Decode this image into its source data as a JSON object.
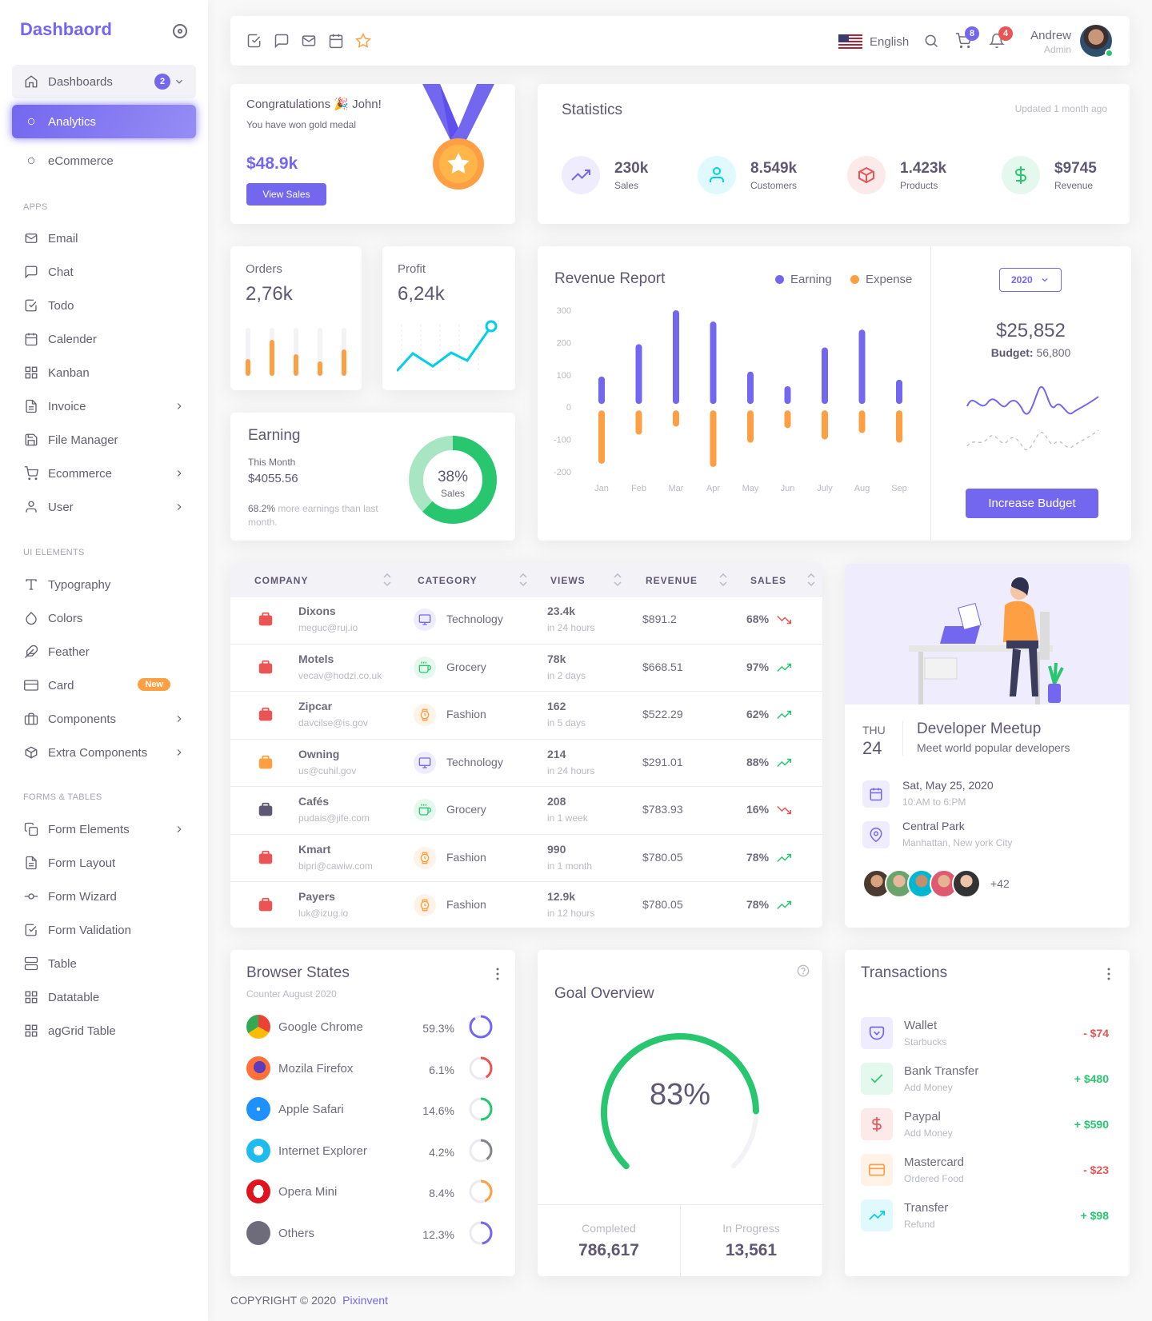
{
  "brand": "Dashbaord",
  "sidebar": {
    "dashboards": {
      "label": "Dashboards",
      "badge": "2"
    },
    "analytics": "Analytics",
    "ecommerce": "eCommerce",
    "heads": {
      "apps": "APPS",
      "ui": "UI ELEMENTS",
      "forms": "FORMS & TABLES"
    },
    "apps": [
      "Email",
      "Chat",
      "Todo",
      "Calender",
      "Kanban",
      "Invoice",
      "File Manager",
      "Ecommerce",
      "User"
    ],
    "ui": [
      "Typography",
      "Colors",
      "Feather",
      "Card",
      "Components",
      "Extra Components"
    ],
    "card_badge": "New",
    "forms": [
      "Form Elements",
      "Form Layout",
      "Form Wizard",
      "Form Validation",
      "Table",
      "Datatable",
      "agGrid Table"
    ]
  },
  "navbar": {
    "language": "English",
    "cart_count": "8",
    "notif_count": "4",
    "user_name": "Andrew",
    "user_role": "Admin"
  },
  "congrats": {
    "title": "Congratulations 🎉 John!",
    "subtitle": "You have won gold medal",
    "amount": "$48.9k",
    "button": "View Sales"
  },
  "statistics": {
    "title": "Statistics",
    "updated": "Updated 1 month ago",
    "items": [
      {
        "value": "230k",
        "label": "Sales",
        "color": "#7367f0"
      },
      {
        "value": "8.549k",
        "label": "Customers",
        "color": "#00cfe8"
      },
      {
        "value": "1.423k",
        "label": "Products",
        "color": "#ea5455"
      },
      {
        "value": "$9745",
        "label": "Revenue",
        "color": "#28c76f"
      }
    ]
  },
  "orders": {
    "title": "Orders",
    "value": "2,76k",
    "bars": [
      0.35,
      0.75,
      0.45,
      0.3,
      0.55
    ]
  },
  "profit": {
    "title": "Profit",
    "value": "6,24k"
  },
  "earning": {
    "title": "Earning",
    "period": "This Month",
    "amount": "$4055.56",
    "pct_text": "68.2%",
    "note_rest": " more earnings than last month.",
    "donut_pct": "38%",
    "donut_label": "Sales",
    "donut_value": 38
  },
  "revenue": {
    "title": "Revenue Report",
    "legend": [
      "Earning",
      "Expense"
    ],
    "year": "2020",
    "total": "$25,852",
    "budget_label": "Budget:",
    "budget_value": "56,800",
    "button": "Increase Budget"
  },
  "chart_data": {
    "type": "bar",
    "title": "Revenue Report",
    "categories": [
      "Jan",
      "Feb",
      "Mar",
      "Apr",
      "May",
      "Jun",
      "July",
      "Aug",
      "Sep"
    ],
    "series": [
      {
        "name": "Earning",
        "values": [
          95,
          195,
          300,
          265,
          110,
          65,
          185,
          240,
          85
        ]
      },
      {
        "name": "Expense",
        "values": [
          -175,
          -85,
          -60,
          -185,
          -110,
          -65,
          -100,
          -80,
          -110
        ]
      }
    ],
    "yticks": [
      "300",
      "200",
      "100",
      "0",
      "-100",
      "-200"
    ],
    "ylim": [
      -200,
      300
    ],
    "colors": {
      "Earning": "#7367f0",
      "Expense": "#ff9f43"
    }
  },
  "table": {
    "headers": [
      "COMPANY",
      "CATEGORY",
      "VIEWS",
      "REVENUE",
      "SALES"
    ],
    "rows": [
      {
        "company": "Dixons",
        "email": "meguc@ruj.io",
        "category": "Technology",
        "views": "23.4k",
        "time": "in 24 hours",
        "revenue": "$891.2",
        "sales": "68%",
        "up": false
      },
      {
        "company": "Motels",
        "email": "vecav@hodzi.co.uk",
        "category": "Grocery",
        "views": "78k",
        "time": "in 2 days",
        "revenue": "$668.51",
        "sales": "97%",
        "up": true
      },
      {
        "company": "Zipcar",
        "email": "davcilse@is.gov",
        "category": "Fashion",
        "views": "162",
        "time": "in 5 days",
        "revenue": "$522.29",
        "sales": "62%",
        "up": true
      },
      {
        "company": "Owning",
        "email": "us@cuhil.gov",
        "category": "Technology",
        "views": "214",
        "time": "in 24 hours",
        "revenue": "$291.01",
        "sales": "88%",
        "up": true
      },
      {
        "company": "Cafés",
        "email": "pudais@jife.com",
        "category": "Grocery",
        "views": "208",
        "time": "in 1 week",
        "revenue": "$783.93",
        "sales": "16%",
        "up": false
      },
      {
        "company": "Kmart",
        "email": "bipri@cawiw.com",
        "category": "Fashion",
        "views": "990",
        "time": "in 1 month",
        "revenue": "$780.05",
        "sales": "78%",
        "up": true
      },
      {
        "company": "Payers",
        "email": "luk@izug.io",
        "category": "Fashion",
        "views": "12.9k",
        "time": "in 12 hours",
        "revenue": "$780.05",
        "sales": "78%",
        "up": true
      }
    ]
  },
  "meetup": {
    "day": "THU",
    "date": "24",
    "title": "Developer Meetup",
    "subtitle": "Meet world popular developers",
    "when": "Sat, May 25, 2020",
    "when_sub": "10:AM to 6:PM",
    "where": "Central Park",
    "where_sub": "Manhattan, New york City",
    "more": "+42"
  },
  "browser": {
    "title": "Browser States",
    "subtitle": "Counter August 2020",
    "items": [
      {
        "name": "Google Chrome",
        "pct": "59.3%",
        "value": 59.3,
        "color": "#7367f0"
      },
      {
        "name": "Mozila Firefox",
        "pct": "6.1%",
        "value": 6.1,
        "color": "#ea5455"
      },
      {
        "name": "Apple Safari",
        "pct": "14.6%",
        "value": 14.6,
        "color": "#28c76f"
      },
      {
        "name": "Internet Explorer",
        "pct": "4.2%",
        "value": 4.2,
        "color": "#82868b"
      },
      {
        "name": "Opera Mini",
        "pct": "8.4%",
        "value": 8.4,
        "color": "#ff9f43"
      },
      {
        "name": "Others",
        "pct": "12.3%",
        "value": 12.3,
        "color": "#7367f0"
      }
    ]
  },
  "goal": {
    "title": "Goal Overview",
    "pct": "83%",
    "value": 83,
    "completed_label": "Completed",
    "completed": "786,617",
    "progress_label": "In Progress",
    "progress": "13,561"
  },
  "transactions": {
    "title": "Transactions",
    "items": [
      {
        "name": "Wallet",
        "sub": "Starbucks",
        "amount": "- $74",
        "color": "#7367f0",
        "amt_color": "#ea5455"
      },
      {
        "name": "Bank Transfer",
        "sub": "Add Money",
        "amount": "+ $480",
        "color": "#28c76f",
        "amt_color": "#28c76f"
      },
      {
        "name": "Paypal",
        "sub": "Add Money",
        "amount": "+ $590",
        "color": "#ea5455",
        "amt_color": "#28c76f"
      },
      {
        "name": "Mastercard",
        "sub": "Ordered Food",
        "amount": "- $23",
        "color": "#ff9f43",
        "amt_color": "#ea5455"
      },
      {
        "name": "Transfer",
        "sub": "Refund",
        "amount": "+ $98",
        "color": "#00cfe8",
        "amt_color": "#28c76f"
      }
    ]
  },
  "footer": {
    "copyright": "COPYRIGHT © 2020",
    "brand": "Pixinvent"
  }
}
